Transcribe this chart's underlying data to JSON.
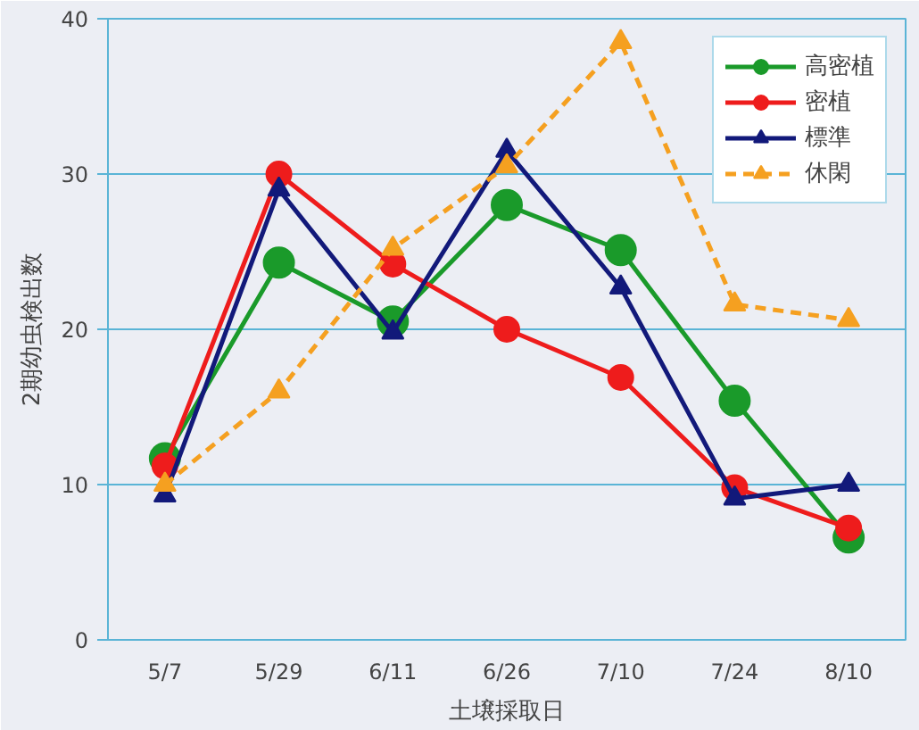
{
  "chart_data": {
    "type": "line",
    "xlabel": "土壌採取日",
    "ylabel": "2期幼虫検出数",
    "categories": [
      "5/7",
      "5/29",
      "6/11",
      "6/26",
      "7/10",
      "7/24",
      "8/10"
    ],
    "ylim": [
      0,
      40
    ],
    "yticks": [
      0,
      10,
      20,
      30,
      40
    ],
    "grid": "y",
    "legend": "top right",
    "series": [
      {
        "name": "高密植",
        "color": "#1a9a2a",
        "marker": "circle",
        "line_style": "solid",
        "values": [
          11.7,
          24.3,
          20.5,
          28,
          25.1,
          15.4,
          6.6
        ]
      },
      {
        "name": "密植",
        "color": "#ee1c1c",
        "marker": "circle",
        "line_style": "solid",
        "values": [
          11.2,
          30,
          24.2,
          20,
          16.9,
          9.8,
          7.2
        ]
      },
      {
        "name": "標準",
        "color": "#12197a",
        "marker": "triangle",
        "line_style": "solid",
        "values": [
          9.3,
          29,
          19.8,
          31.5,
          22.7,
          9.1,
          10
        ]
      },
      {
        "name": "休閑",
        "color": "#f5a020",
        "marker": "triangle",
        "line_style": "dashed",
        "values": [
          10,
          16,
          25.2,
          30.5,
          38.5,
          21.6,
          20.6
        ]
      }
    ]
  }
}
